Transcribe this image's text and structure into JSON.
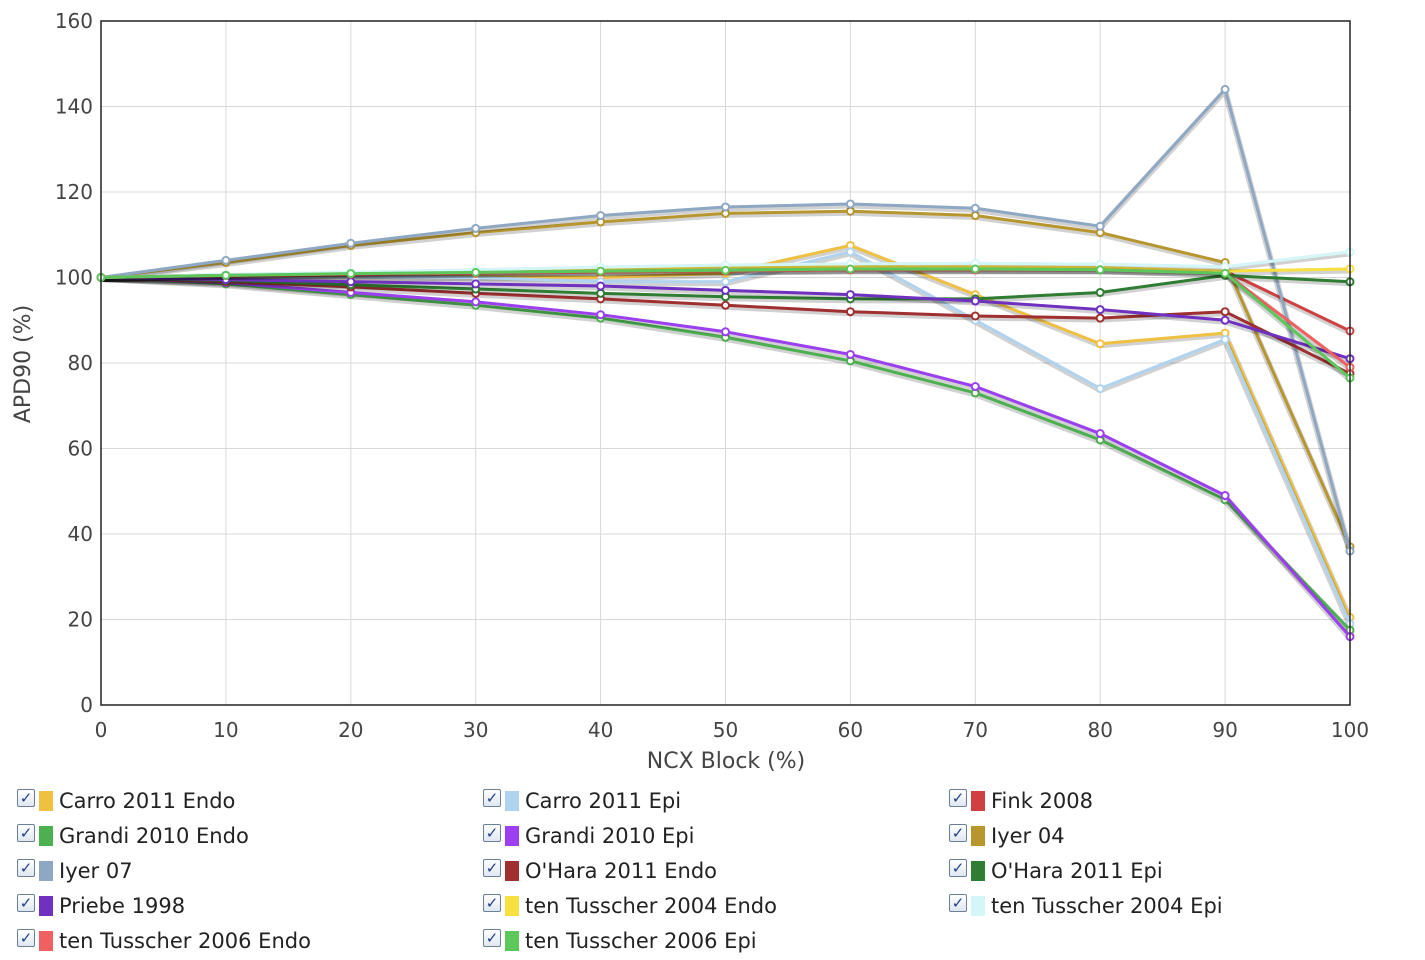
{
  "chart_data": {
    "type": "line",
    "title": "",
    "xlabel": "NCX Block (%)",
    "ylabel": "APD90 (%)",
    "xlim": [
      0,
      100
    ],
    "ylim": [
      0,
      160
    ],
    "xticks": [
      0,
      10,
      20,
      30,
      40,
      50,
      60,
      70,
      80,
      90,
      100
    ],
    "yticks": [
      0,
      20,
      40,
      60,
      80,
      100,
      120,
      140,
      160
    ],
    "grid": true,
    "legend_placement": "bottom",
    "x": [
      0,
      10,
      20,
      30,
      40,
      50,
      60,
      70,
      80,
      90,
      100
    ],
    "series": [
      {
        "name": "Carro 2011 Endo",
        "color": "#f0c040",
        "values": [
          100,
          100.2,
          100.3,
          100.2,
          100,
          101,
          107.5,
          96,
          84.5,
          87,
          20.5
        ]
      },
      {
        "name": "Carro 2011 Epi",
        "color": "#b0d4ef",
        "values": [
          100,
          100.2,
          100.2,
          100,
          99,
          99,
          106,
          90,
          74,
          85.5,
          19
        ]
      },
      {
        "name": "Fink 2008",
        "color": "#d04040",
        "values": [
          100,
          100.3,
          100.6,
          101,
          101.3,
          101.6,
          101.8,
          101.8,
          101.8,
          101.5,
          87.5
        ]
      },
      {
        "name": "Grandi 2010 Endo",
        "color": "#4caf50",
        "values": [
          100,
          98.5,
          96,
          93.5,
          90.5,
          86,
          80.5,
          73,
          62,
          48,
          17.5
        ]
      },
      {
        "name": "Grandi 2010 Epi",
        "color": "#9b3ff0",
        "values": [
          100,
          98.8,
          96.5,
          94.3,
          91.3,
          87.3,
          82,
          74.5,
          63.5,
          49,
          16
        ]
      },
      {
        "name": "Iyer 04",
        "color": "#b8962e",
        "values": [
          100,
          103.5,
          107.5,
          110.5,
          113,
          115,
          115.5,
          114.5,
          110.5,
          103.5,
          37
        ]
      },
      {
        "name": "Iyer 07",
        "color": "#8ea8c3",
        "values": [
          100,
          104,
          108,
          111.5,
          114.5,
          116.5,
          117.2,
          116.2,
          112,
          144,
          36
        ]
      },
      {
        "name": "O'Hara 2011 Endo",
        "color": "#a03030",
        "values": [
          100,
          99,
          97.8,
          96.3,
          95,
          93.5,
          92,
          91,
          90.5,
          92,
          77.5
        ]
      },
      {
        "name": "O'Hara 2011 Epi",
        "color": "#2e7d32",
        "values": [
          100,
          99.3,
          98.3,
          97.3,
          96.3,
          95.5,
          95,
          95,
          96.5,
          100.5,
          99
        ]
      },
      {
        "name": "Priebe 1998",
        "color": "#7030c0",
        "values": [
          100,
          99.5,
          99,
          98.5,
          98,
          97,
          96,
          94.5,
          92.5,
          90,
          81
        ]
      },
      {
        "name": "ten Tusscher 2004 Endo",
        "color": "#f8e040",
        "values": [
          100,
          100.5,
          101,
          101.5,
          102,
          102.5,
          102.5,
          102.5,
          102.3,
          101.5,
          102
        ]
      },
      {
        "name": "ten Tusscher 2004 Epi",
        "color": "#d4f6f8",
        "values": [
          100,
          100.7,
          101.2,
          101.8,
          102.4,
          102.9,
          103.2,
          103.3,
          103.1,
          102.5,
          106
        ]
      },
      {
        "name": "ten Tusscher 2006 Endo",
        "color": "#f06060",
        "values": [
          100,
          100.5,
          100.8,
          101,
          101.3,
          101.5,
          101.8,
          101.8,
          101.8,
          101,
          79
        ]
      },
      {
        "name": "ten Tusscher 2006 Epi",
        "color": "#5cc85c",
        "values": [
          100,
          100.5,
          100.9,
          101.2,
          101.5,
          101.7,
          102,
          102,
          101.8,
          101,
          76.5
        ]
      }
    ]
  },
  "legend": {
    "check_glyph": "✓",
    "items": [
      {
        "label": "Carro 2011 Endo",
        "color": "#f0c040",
        "checked": true
      },
      {
        "label": "Carro 2011 Epi",
        "color": "#b0d4ef",
        "checked": true
      },
      {
        "label": "Fink 2008",
        "color": "#d04040",
        "checked": true
      },
      {
        "label": "Grandi 2010 Endo",
        "color": "#4caf50",
        "checked": true
      },
      {
        "label": "Grandi 2010 Epi",
        "color": "#9b3ff0",
        "checked": true
      },
      {
        "label": "Iyer 04",
        "color": "#b8962e",
        "checked": true
      },
      {
        "label": "Iyer 07",
        "color": "#8ea8c3",
        "checked": true
      },
      {
        "label": "O'Hara 2011 Endo",
        "color": "#a03030",
        "checked": true
      },
      {
        "label": "O'Hara 2011 Epi",
        "color": "#2e7d32",
        "checked": true
      },
      {
        "label": "Priebe 1998",
        "color": "#7030c0",
        "checked": true
      },
      {
        "label": "ten Tusscher 2004 Endo",
        "color": "#f8e040",
        "checked": true
      },
      {
        "label": "ten Tusscher 2004 Epi",
        "color": "#d4f6f8",
        "checked": true
      },
      {
        "label": "ten Tusscher 2006 Endo",
        "color": "#f06060",
        "checked": true
      },
      {
        "label": "ten Tusscher 2006 Epi",
        "color": "#5cc85c",
        "checked": true
      }
    ]
  }
}
